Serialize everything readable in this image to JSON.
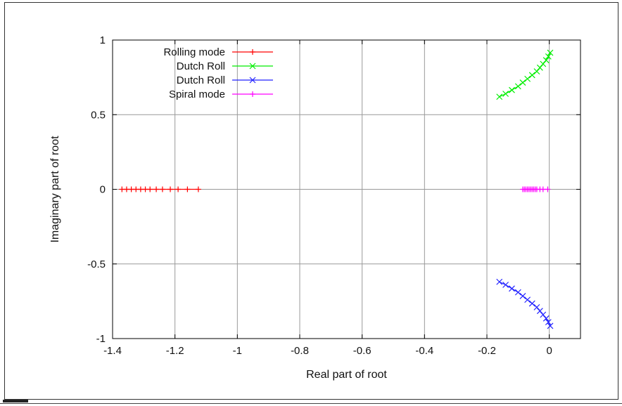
{
  "chart_data": {
    "type": "scatter",
    "title": "",
    "xlabel": "Real part of root",
    "ylabel": "Imaginary part of root",
    "xlim": [
      -1.4,
      0.1
    ],
    "ylim": [
      -1,
      1
    ],
    "xticks": [
      -1.4,
      -1.2,
      -1,
      -0.8,
      -0.6,
      -0.4,
      -0.2,
      0
    ],
    "xtick_labels": [
      "-1.4",
      "-1.2",
      "-1",
      "-0.8",
      "-0.6",
      "-0.4",
      "-0.2",
      "0"
    ],
    "yticks": [
      -1,
      -0.5,
      0,
      0.5,
      1
    ],
    "ytick_labels": [
      "-1",
      "-0.5",
      "0",
      "0.5",
      "1"
    ],
    "grid": true,
    "legend_position": "top-left",
    "series": [
      {
        "name": "Rolling mode",
        "color": "#ff0000",
        "marker": "plus",
        "points": [
          [
            -1.37,
            0
          ],
          [
            -1.355,
            0
          ],
          [
            -1.34,
            0
          ],
          [
            -1.325,
            0
          ],
          [
            -1.31,
            0
          ],
          [
            -1.295,
            0
          ],
          [
            -1.28,
            0
          ],
          [
            -1.26,
            0
          ],
          [
            -1.24,
            0
          ],
          [
            -1.215,
            0
          ],
          [
            -1.19,
            0
          ],
          [
            -1.16,
            0
          ],
          [
            -1.125,
            0
          ]
        ]
      },
      {
        "name": "Dutch Roll",
        "color": "#00ee00",
        "marker": "x",
        "points": [
          [
            -0.16,
            0.62
          ],
          [
            -0.14,
            0.64
          ],
          [
            -0.12,
            0.665
          ],
          [
            -0.1,
            0.69
          ],
          [
            -0.085,
            0.715
          ],
          [
            -0.07,
            0.74
          ],
          [
            -0.055,
            0.765
          ],
          [
            -0.04,
            0.79
          ],
          [
            -0.03,
            0.815
          ],
          [
            -0.02,
            0.84
          ],
          [
            -0.01,
            0.865
          ],
          [
            -0.003,
            0.89
          ],
          [
            0.003,
            0.915
          ]
        ]
      },
      {
        "name": "Dutch Roll",
        "color": "#2222ff",
        "marker": "x",
        "points": [
          [
            -0.16,
            -0.62
          ],
          [
            -0.14,
            -0.64
          ],
          [
            -0.12,
            -0.665
          ],
          [
            -0.1,
            -0.69
          ],
          [
            -0.085,
            -0.715
          ],
          [
            -0.07,
            -0.74
          ],
          [
            -0.055,
            -0.765
          ],
          [
            -0.04,
            -0.79
          ],
          [
            -0.03,
            -0.815
          ],
          [
            -0.02,
            -0.84
          ],
          [
            -0.01,
            -0.865
          ],
          [
            -0.003,
            -0.89
          ],
          [
            0.003,
            -0.915
          ]
        ]
      },
      {
        "name": "Spiral mode",
        "color": "#ff00ff",
        "marker": "plus",
        "points": [
          [
            -0.085,
            0
          ],
          [
            -0.08,
            0
          ],
          [
            -0.075,
            0
          ],
          [
            -0.07,
            0
          ],
          [
            -0.065,
            0
          ],
          [
            -0.06,
            0
          ],
          [
            -0.055,
            0
          ],
          [
            -0.05,
            0
          ],
          [
            -0.045,
            0
          ],
          [
            -0.04,
            0
          ],
          [
            -0.03,
            0
          ],
          [
            -0.02,
            0
          ],
          [
            -0.005,
            0
          ]
        ]
      }
    ]
  }
}
